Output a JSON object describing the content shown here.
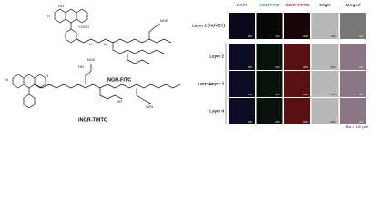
{
  "structures": {
    "left": {
      "name": "NGR-FITC",
      "atoms": [
        "OH",
        "COOH",
        "O",
        "H",
        "N",
        "NH2"
      ]
    },
    "right": {
      "name": "iNGR-TRITC",
      "atoms": [
        "N",
        "NH2",
        "HN",
        "H2N",
        "NH",
        "O"
      ]
    }
  },
  "panel": {
    "columns": [
      "DAPI",
      "NGR-FITC",
      "iNGR-TRITC",
      "Bright",
      "Merged"
    ],
    "rows": [
      "Layer 1 (HUVEC)",
      "Layer 2",
      "Layer 3",
      "Layer 4"
    ],
    "group_label": "HCT116",
    "scale_bar": "Bar = 100 μm"
  }
}
